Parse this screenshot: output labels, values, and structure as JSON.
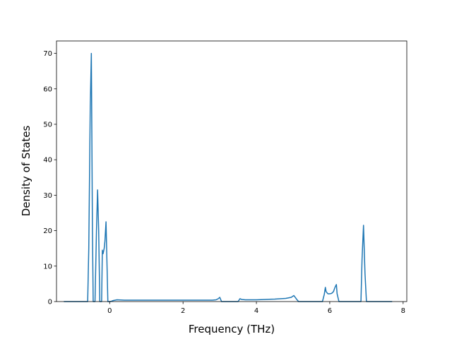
{
  "chart_data": {
    "type": "line",
    "title": "",
    "xlabel": "Frequency (THz)",
    "ylabel": "Density of States",
    "xlim": [
      -1.45,
      8.1
    ],
    "ylim": [
      0,
      73.5
    ],
    "xticks": [
      0,
      2,
      4,
      6,
      8
    ],
    "yticks": [
      0,
      10,
      20,
      30,
      40,
      50,
      60,
      70
    ],
    "grid": false,
    "legend": "none",
    "series": [
      {
        "color": "#1f77b4",
        "x": [
          -1.25,
          -0.6,
          -0.57,
          -0.53,
          -0.5,
          -0.47,
          -0.45,
          -0.4,
          -0.36,
          -0.33,
          -0.3,
          -0.27,
          -0.22,
          -0.2,
          -0.18,
          -0.15,
          -0.13,
          -0.1,
          -0.05,
          -0.01,
          0.01,
          0.05,
          0.1,
          0.2,
          0.4,
          1.0,
          2.0,
          2.8,
          2.9,
          2.96,
          3.0,
          3.05,
          3.5,
          3.55,
          3.6,
          3.7,
          4.0,
          4.5,
          4.8,
          4.95,
          5.02,
          5.05,
          5.1,
          5.15,
          5.8,
          5.85,
          5.88,
          5.9,
          5.95,
          6.0,
          6.05,
          6.1,
          6.15,
          6.18,
          6.2,
          6.25,
          6.85,
          6.88,
          6.92,
          6.96,
          7.0,
          7.7
        ],
        "y": [
          0,
          0,
          15,
          55,
          70,
          20,
          0,
          0,
          20,
          31.5,
          20,
          0,
          0,
          14.5,
          13.5,
          15,
          17,
          22.5,
          0,
          0,
          0,
          0.1,
          0.3,
          0.5,
          0.4,
          0.4,
          0.4,
          0.4,
          0.5,
          0.8,
          1.2,
          0,
          0,
          0.8,
          0.6,
          0.5,
          0.5,
          0.7,
          0.9,
          1.2,
          1.7,
          1.3,
          0.6,
          0,
          0,
          2,
          4,
          2.8,
          2.2,
          2.2,
          2.3,
          2.8,
          4.2,
          4.8,
          2.2,
          0,
          0,
          12,
          21.5,
          8,
          0,
          0
        ]
      }
    ]
  }
}
